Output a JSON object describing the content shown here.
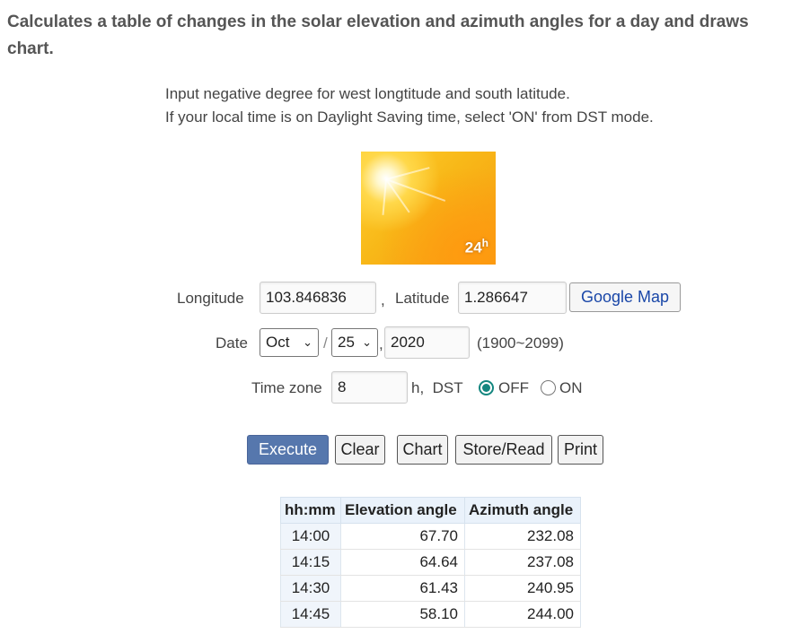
{
  "header": {
    "title": "Calculates a table of changes in the solar elevation and azimuth angles for a day and draws chart."
  },
  "notes": [
    "Input negative degree for west longtitude and south latitude.",
    "If your local time is on Daylight Saving time, select 'ON' from DST mode."
  ],
  "image": {
    "label": "24",
    "label_sup": "h"
  },
  "form": {
    "longitude_label": "Longitude",
    "longitude_value": "103.846836",
    "comma": ",",
    "latitude_label": "Latitude",
    "latitude_value": "1.286647",
    "google_map_label": "Google Map",
    "date_label": "Date",
    "month_value": "Oct",
    "slash": "/",
    "day_value": "25",
    "year_value": "2020",
    "year_range": "(1900~2099)",
    "timezone_label": "Time zone",
    "timezone_value": "8",
    "h_dst_label": "h,  DST",
    "dst_off_label": "OFF",
    "dst_on_label": "ON",
    "dst_selected": "OFF"
  },
  "buttons": {
    "execute": "Execute",
    "clear": "Clear",
    "chart": "Chart",
    "store_read": "Store/Read",
    "print": "Print"
  },
  "table": {
    "headers": [
      "hh:mm",
      "Elevation angle",
      "Azimuth angle"
    ],
    "rows": [
      [
        "14:00",
        "67.70",
        "232.08"
      ],
      [
        "14:15",
        "64.64",
        "237.08"
      ],
      [
        "14:30",
        "61.43",
        "240.95"
      ],
      [
        "14:45",
        "58.10",
        "244.00"
      ]
    ]
  },
  "colors": {
    "execute_bg": "#5677ad",
    "radio_accent": "#13867f",
    "table_header_bg": "#eaf2fb"
  }
}
